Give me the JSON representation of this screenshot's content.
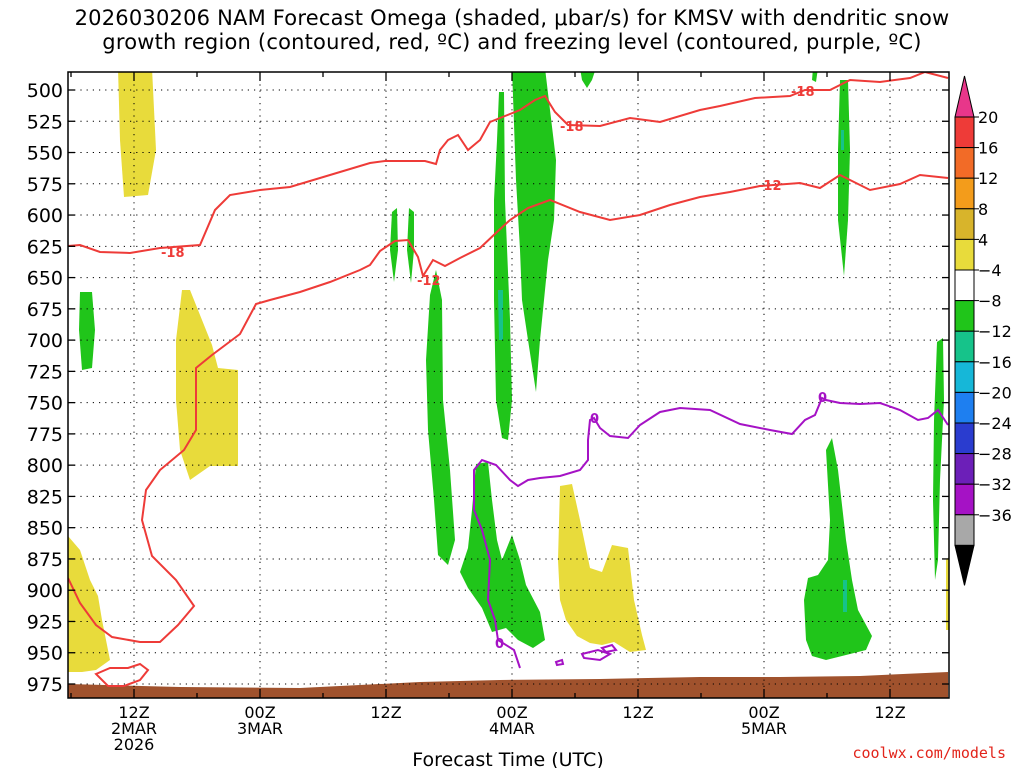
{
  "title": {
    "line1": "2026030206 NAM Forecast Omega (shaded, μbar/s) for KMSV with dendritic snow",
    "line2": "growth region (contoured, red, ºC) and freezing level (contoured, purple, ºC)"
  },
  "footer": "coolwx.com/models",
  "chart_data": {
    "type": "heatmap",
    "xlabel": "Forecast Time (UTC)",
    "ylabel": "",
    "y_scale": "pressure (hPa), inverted",
    "ylim": [
      987,
      480
    ],
    "xlim": [
      "2026-03-02T06Z",
      "2026-03-05T21Z"
    ],
    "y_ticks": [
      500,
      525,
      550,
      575,
      600,
      625,
      650,
      675,
      700,
      725,
      750,
      775,
      800,
      825,
      850,
      875,
      900,
      925,
      950,
      975
    ],
    "x_ticks": [
      {
        "t": "2026-03-02T12Z",
        "lines": [
          "12Z",
          "2MAR",
          "2026"
        ]
      },
      {
        "t": "2026-03-03T00Z",
        "lines": [
          "00Z",
          "3MAR"
        ]
      },
      {
        "t": "2026-03-03T12Z",
        "lines": [
          "12Z"
        ]
      },
      {
        "t": "2026-03-04T00Z",
        "lines": [
          "00Z",
          "4MAR"
        ]
      },
      {
        "t": "2026-03-04T12Z",
        "lines": [
          "12Z"
        ]
      },
      {
        "t": "2026-03-05T00Z",
        "lines": [
          "00Z",
          "5MAR"
        ]
      },
      {
        "t": "2026-03-05T12Z",
        "lines": [
          "12Z"
        ]
      }
    ],
    "grid": "dotted",
    "colorbar": {
      "position": "right",
      "labels": [
        "20",
        "16",
        "12",
        "8",
        "4",
        "−4",
        "−8",
        "−12",
        "−16",
        "−20",
        "−24",
        "−28",
        "−32",
        "−36"
      ],
      "colors": [
        "#e8368a",
        "#ee3b38",
        "#f26b27",
        "#f39c1b",
        "#d8b42b",
        "#e8db3b",
        "#ffffff",
        "#20c51a",
        "#16c38a",
        "#16b7d8",
        "#1e7ff0",
        "#2a3ccf",
        "#6c1fb8",
        "#a512c5",
        "#a8a8a8",
        "#000000"
      ]
    },
    "contour_labels": [
      {
        "text": "-18",
        "color": "#ee3b38"
      },
      {
        "text": "-18",
        "color": "#ee3b38"
      },
      {
        "text": "-18",
        "color": "#ee3b38"
      },
      {
        "text": "-12",
        "color": "#ee3b38"
      },
      {
        "text": "-12",
        "color": "#ee3b38"
      },
      {
        "text": "0",
        "color": "#a512c5"
      },
      {
        "text": "0",
        "color": "#a512c5"
      },
      {
        "text": "0",
        "color": "#a512c5"
      }
    ],
    "colors": {
      "omega_negative": "#20c51a",
      "omega_positive": "#e8db3b",
      "dgz_contour": "#ee3b38",
      "freezing_contour": "#a512c5",
      "ground": "#a0522d"
    }
  }
}
